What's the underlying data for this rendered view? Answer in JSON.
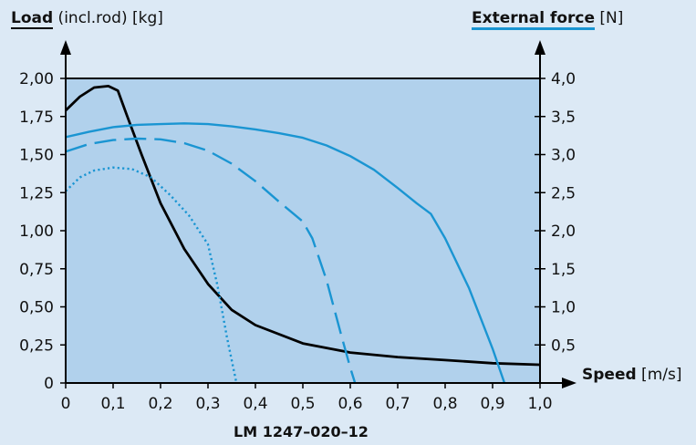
{
  "header": {
    "left_bold": "Load",
    "left_rest": " (incl.rod) [kg]",
    "right_bold": "External force",
    "right_rest": " [N]"
  },
  "x_axis": {
    "label_bold": "Speed",
    "label_rest": " [m/s]"
  },
  "caption": "LM 1247–020–12",
  "colors": {
    "background": "#dce9f5",
    "plot": "#b1d1ec",
    "load": "#000000",
    "force": "#1a95d2"
  },
  "chart_data": {
    "type": "line",
    "title": "",
    "xlabel": "Speed [m/s]",
    "ylabel_left": "Load (incl.rod) [kg]",
    "ylabel_right": "External force [N]",
    "xlim": [
      0,
      1.0
    ],
    "ylim_left": [
      0,
      2.0
    ],
    "ylim_right": [
      0,
      4.0
    ],
    "x_ticks": [
      "0",
      "0,1",
      "0,2",
      "0,3",
      "0,4",
      "0,5",
      "0,6",
      "0,7",
      "0,8",
      "0,9",
      "1,0"
    ],
    "y_left_ticks": [
      "0",
      "0,25",
      "0,50",
      "0,75",
      "1,00",
      "1,25",
      "1,50",
      "1,75",
      "2,00"
    ],
    "y_right_ticks": [
      "0,5",
      "1,0",
      "1,5",
      "2,0",
      "2,5",
      "3,0",
      "3,5",
      "4,0"
    ],
    "grid": false,
    "series": [
      {
        "axis": "left",
        "style": "solid",
        "color": "#000000",
        "x": [
          0,
          0.03,
          0.06,
          0.09,
          0.11,
          0.13,
          0.16,
          0.2,
          0.25,
          0.3,
          0.35,
          0.4,
          0.5,
          0.6,
          0.7,
          0.8,
          0.9,
          1.0
        ],
        "y": [
          1.79,
          1.88,
          1.94,
          1.95,
          1.92,
          1.75,
          1.5,
          1.18,
          0.88,
          0.65,
          0.48,
          0.38,
          0.26,
          0.2,
          0.17,
          0.15,
          0.13,
          0.12
        ]
      },
      {
        "axis": "right",
        "style": "solid",
        "color": "#1a95d2",
        "x": [
          0,
          0.05,
          0.1,
          0.15,
          0.2,
          0.25,
          0.3,
          0.35,
          0.4,
          0.45,
          0.5,
          0.55,
          0.6,
          0.65,
          0.7,
          0.74,
          0.77,
          0.8,
          0.85,
          0.9,
          0.925
        ],
        "y": [
          3.23,
          3.3,
          3.36,
          3.39,
          3.4,
          3.41,
          3.4,
          3.37,
          3.33,
          3.28,
          3.22,
          3.12,
          2.98,
          2.8,
          2.56,
          2.36,
          2.22,
          1.9,
          1.25,
          0.45,
          0.0
        ]
      },
      {
        "axis": "right",
        "style": "dashed",
        "color": "#1a95d2",
        "x": [
          0,
          0.05,
          0.1,
          0.15,
          0.2,
          0.25,
          0.3,
          0.35,
          0.4,
          0.45,
          0.5,
          0.52,
          0.55,
          0.58,
          0.6,
          0.61
        ],
        "y": [
          3.04,
          3.14,
          3.19,
          3.21,
          3.2,
          3.15,
          3.05,
          2.88,
          2.65,
          2.38,
          2.12,
          1.9,
          1.35,
          0.65,
          0.2,
          0.0
        ]
      },
      {
        "axis": "right",
        "style": "dotted",
        "color": "#1a95d2",
        "x": [
          0,
          0.03,
          0.06,
          0.1,
          0.14,
          0.18,
          0.22,
          0.26,
          0.3,
          0.32,
          0.34,
          0.36
        ],
        "y": [
          2.52,
          2.7,
          2.79,
          2.83,
          2.81,
          2.7,
          2.47,
          2.2,
          1.82,
          1.28,
          0.6,
          0.0
        ]
      }
    ]
  }
}
